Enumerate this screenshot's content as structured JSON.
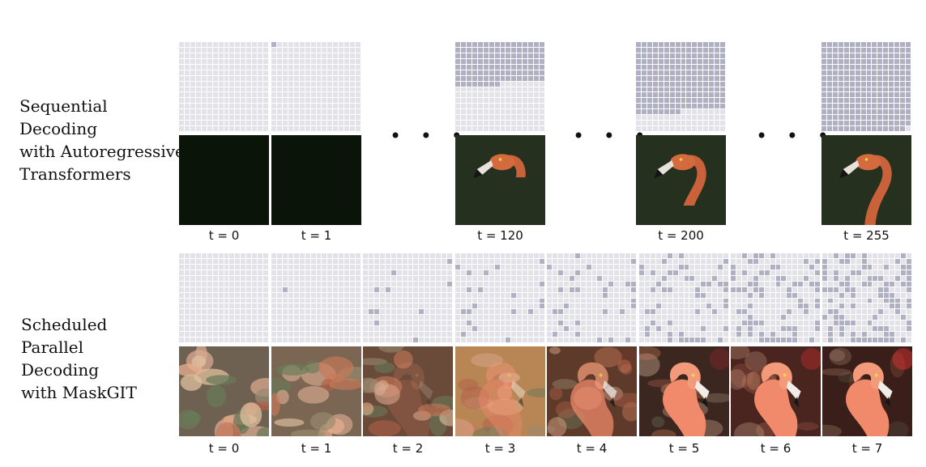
{
  "rows": [
    {
      "label_lines": [
        "Sequential",
        "Decoding",
        "with Autoregressive",
        "Transformers"
      ],
      "steps": [
        {
          "t_label": "t = 0",
          "seq_filled": 0
        },
        {
          "t_label": "t = 1",
          "seq_filled": 1
        },
        {
          "t_label": "t = 120",
          "seq_filled": 120
        },
        {
          "t_label": "t = 200",
          "seq_filled": 200
        },
        {
          "t_label": "t = 255",
          "seq_filled": 255
        }
      ],
      "ellipsis": "• • •"
    },
    {
      "label_lines": [
        "Scheduled",
        "Parallel",
        "Decoding",
        "with MaskGIT"
      ],
      "steps": [
        {
          "t_label": "t = 0",
          "random_filled": 0
        },
        {
          "t_label": "t = 1",
          "random_filled": 1
        },
        {
          "t_label": "t = 2",
          "random_filled": 10
        },
        {
          "t_label": "t = 3",
          "random_filled": 20
        },
        {
          "t_label": "t = 4",
          "random_filled": 32
        },
        {
          "t_label": "t = 5",
          "random_filled": 52
        },
        {
          "t_label": "t = 6",
          "random_filled": 76
        },
        {
          "t_label": "t = 7",
          "random_filled": 100
        }
      ]
    }
  ],
  "colors": {
    "empty_token": "#e2e2e8",
    "filled_token": "#b0b0c4",
    "grid_line": "#ffffff",
    "dark_image": "#0b1408"
  }
}
